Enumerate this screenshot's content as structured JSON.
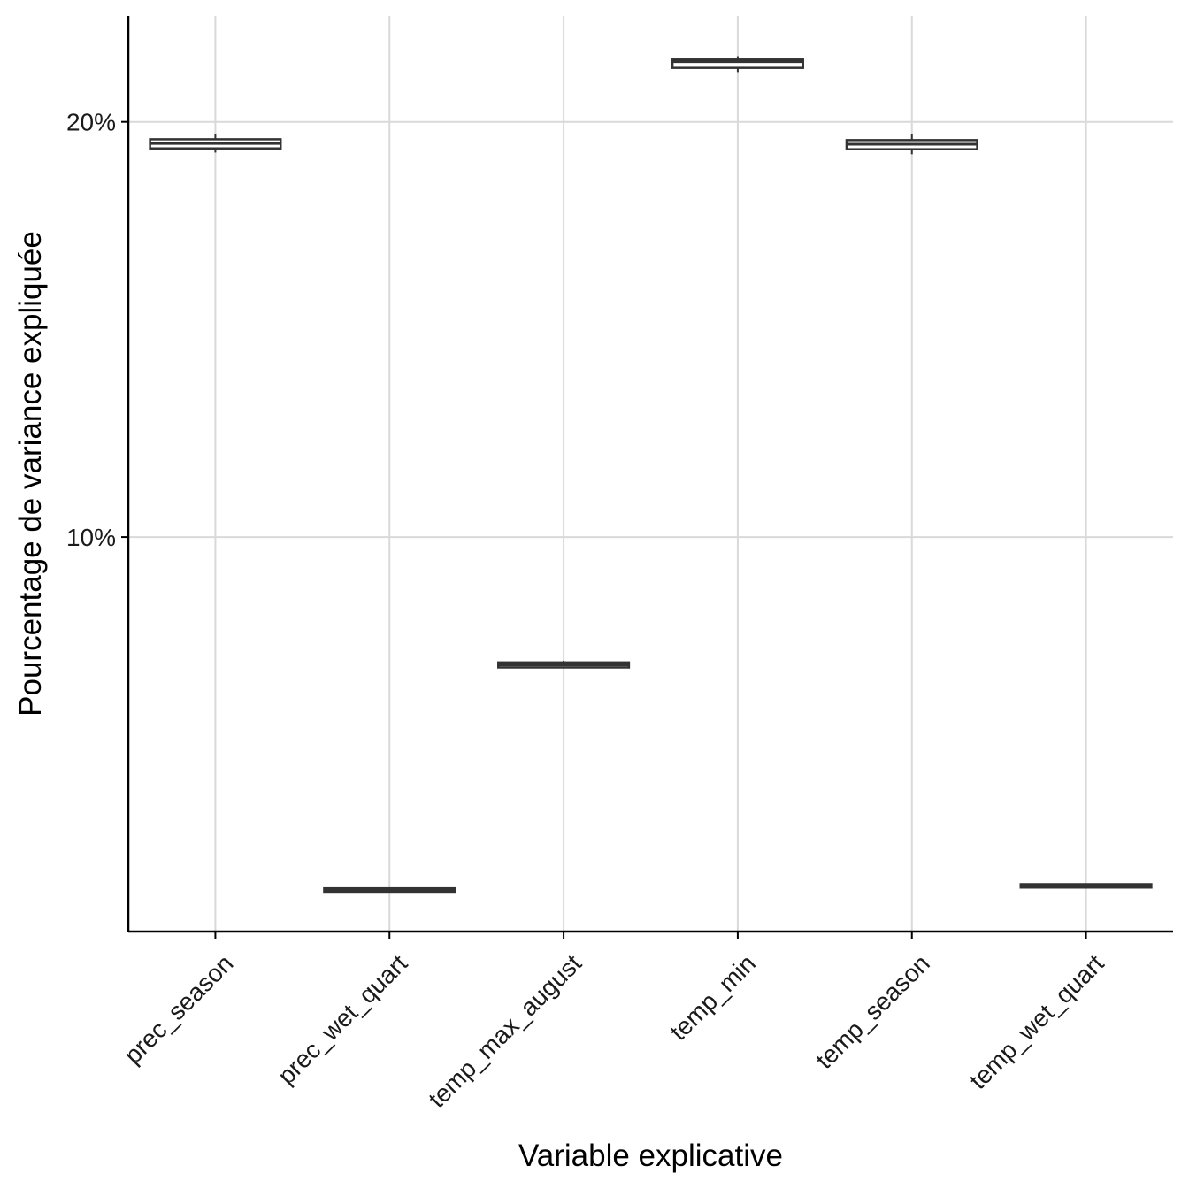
{
  "chart_data": {
    "type": "boxplot",
    "xlabel": "Variable explicative",
    "ylabel": "Pourcentage de variance expliquée",
    "categories": [
      "prec_season",
      "prec_wet_quart",
      "temp_max_august",
      "temp_min",
      "temp_season",
      "temp_wet_quart"
    ],
    "boxes": [
      {
        "category": "prec_season",
        "whisker_low": 19.26,
        "q1": 19.36,
        "median": 19.48,
        "q3": 19.58,
        "whisker_high": 19.7
      },
      {
        "category": "prec_wet_quart",
        "whisker_low": 1.46,
        "q1": 1.46,
        "median": 1.5,
        "q3": 1.54,
        "whisker_high": 1.56
      },
      {
        "category": "temp_max_august",
        "whisker_low": 6.84,
        "q1": 6.86,
        "median": 6.92,
        "q3": 6.98,
        "whisker_high": 7.02
      },
      {
        "category": "temp_min",
        "whisker_low": 21.2,
        "q1": 21.3,
        "median": 21.45,
        "q3": 21.5,
        "whisker_high": 21.58
      },
      {
        "category": "temp_season",
        "whisker_low": 19.22,
        "q1": 19.34,
        "median": 19.46,
        "q3": 19.56,
        "whisker_high": 19.7
      },
      {
        "category": "temp_wet_quart",
        "whisker_low": 1.56,
        "q1": 1.56,
        "median": 1.6,
        "q3": 1.64,
        "whisker_high": 1.66
      }
    ],
    "y_ticks": [
      {
        "value": 10,
        "label": "10%"
      },
      {
        "value": 20,
        "label": "20%"
      }
    ],
    "ylim": [
      0.5,
      22.55
    ],
    "grid": true,
    "colors": {
      "box_stroke": "#333333",
      "grid": "#d9d9d9",
      "axis": "#000000"
    }
  }
}
